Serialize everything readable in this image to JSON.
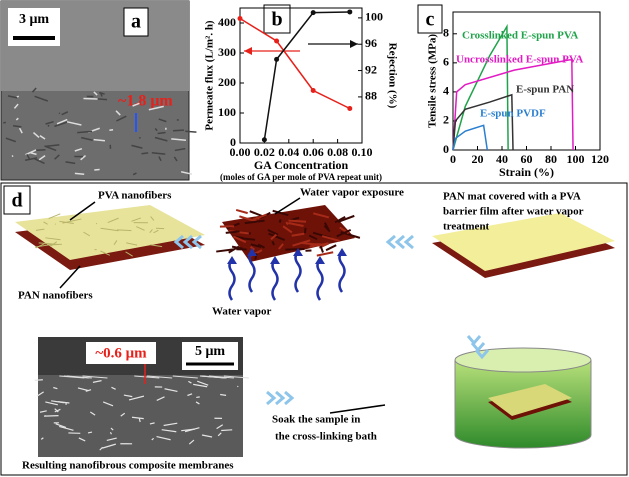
{
  "panel_a": {
    "label": "a",
    "scale_bar": "3 μm",
    "annotation": "~1.8 μm"
  },
  "chart_data": [
    {
      "type": "line",
      "panel_label": "b",
      "markers": true,
      "x_label": "GA Concentration",
      "x_sublabel": "(moles of GA per mole of PVA repeat unit)",
      "y_label": "Permeate flux (L/m². h)",
      "y2_label": "Rejection (%)",
      "xlim": [
        0,
        0.1
      ],
      "xticks": [
        {
          "value": 0,
          "label": "0.00"
        },
        {
          "value": 0.02,
          "label": "0.02"
        },
        {
          "value": 0.04,
          "label": "0.04"
        },
        {
          "value": 0.06,
          "label": "0.06"
        },
        {
          "value": 0.08,
          "label": "0.08"
        },
        {
          "value": 0.1,
          "label": "0.10"
        }
      ],
      "ylim": [
        0,
        450
      ],
      "yticks": [
        0,
        100,
        200,
        300,
        400
      ],
      "y2lim": [
        81,
        101.5
      ],
      "y2ticks": [
        88,
        92,
        96,
        100
      ],
      "series": [
        {
          "color": "#e8201a",
          "x": [
            0,
            0.03,
            0.06,
            0.09
          ],
          "values": [
            415,
            340,
            175,
            115
          ]
        },
        {
          "color": "#111111",
          "axis": "y2",
          "x": [
            0.02,
            0.03,
            0.06,
            0.09
          ],
          "values": [
            81.5,
            93.7,
            100.8,
            100.9
          ]
        }
      ]
    },
    {
      "type": "line",
      "panel_label": "c",
      "markers": false,
      "x_label": "Strain (%)",
      "y_label": "Tensile stress (MPa)",
      "xlim": [
        0,
        120
      ],
      "xticks": [
        0,
        20,
        40,
        60,
        80,
        100,
        120
      ],
      "ylim": [
        0,
        9.5
      ],
      "yticks": [
        0,
        2,
        4,
        6,
        8
      ],
      "series": [
        {
          "name": "Crosslinked E-spun PVA",
          "color": "#1fa34a",
          "x": [
            0,
            10,
            30,
            44,
            45
          ],
          "values": [
            0,
            3,
            6.5,
            8.5,
            0
          ]
        },
        {
          "name": "Uncrosslinked E-spun PVA",
          "color": "#e21bc4",
          "x": [
            0,
            3,
            10,
            50,
            95,
            97,
            98
          ],
          "values": [
            0,
            4,
            4.5,
            5.5,
            6.2,
            6.2,
            0
          ]
        },
        {
          "name": "E-spun PAN",
          "color": "#333333",
          "x": [
            0,
            2,
            10,
            30,
            48,
            49
          ],
          "values": [
            0,
            2,
            2.8,
            3.3,
            3.8,
            0
          ]
        },
        {
          "name": "E-spun PVDF",
          "color": "#2a7fd0",
          "x": [
            0,
            2,
            10,
            25,
            28
          ],
          "values": [
            0,
            0.8,
            1.3,
            1.7,
            0
          ]
        }
      ]
    }
  ],
  "panel_d": {
    "label": "d",
    "pva_label": "PVA nanofibers",
    "pan_label": "PAN nanofibers",
    "exposure_label": "Water vapor exposure",
    "vapor_label": "Water vapor",
    "covered_caption": [
      "PAN mat covered with a PVA",
      "barrier film after water vapor",
      "treatment"
    ],
    "soak_caption": [
      "Soak the sample in",
      "the cross-linking bath"
    ],
    "sem_annotation": "~0.6 μm",
    "sem_scale_bar": "5 μm",
    "result_caption": "Resulting nanofibrous composite membranes"
  }
}
